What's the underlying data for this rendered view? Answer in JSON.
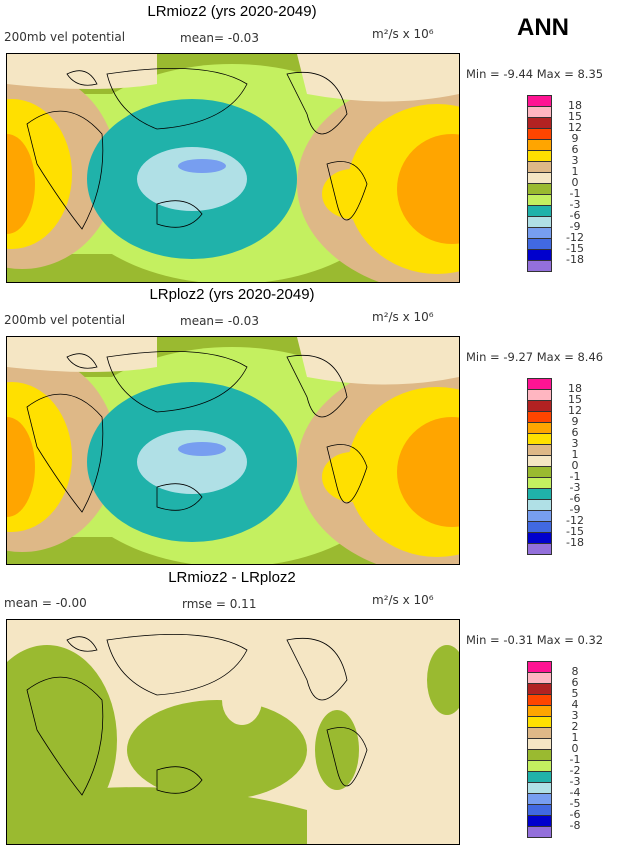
{
  "figure_label": "ANN",
  "legend_colors": [
    "#ff1493",
    "#ffb6c1",
    "#b22222",
    "#ff4500",
    "#ffa500",
    "#ffe000",
    "#deb887",
    "#f5e6c4",
    "#9aba30",
    "#c4f060",
    "#20b2aa",
    "#b0e0e6",
    "#779ef0",
    "#4169e1",
    "#0000cd",
    "#9370db"
  ],
  "panels": [
    {
      "title": "LRmioz2 (yrs 2020-2049)",
      "left_label": "200mb vel potential",
      "mean_label": "mean=  -0.03",
      "units": "m²/s x 10⁶",
      "minmax": "Min =  -9.44 Max =   8.35",
      "levels": [
        "18",
        "15",
        "12",
        "9",
        "6",
        "3",
        "1",
        "0",
        "-1",
        "-3",
        "-6",
        "-9",
        "-12",
        "-15",
        "-18"
      ]
    },
    {
      "title": "LRploz2 (yrs 2020-2049)",
      "left_label": "200mb vel potential",
      "mean_label": "mean=  -0.03",
      "units": "m²/s x 10⁶",
      "minmax": "Min =  -9.27 Max =   8.46",
      "levels": [
        "18",
        "15",
        "12",
        "9",
        "6",
        "3",
        "1",
        "0",
        "-1",
        "-3",
        "-6",
        "-9",
        "-12",
        "-15",
        "-18"
      ]
    },
    {
      "title": "LRmioz2 - LRploz2",
      "left_label": "mean =  -0.00",
      "mean_label": "rmse =   0.11",
      "units": "m²/s x 10⁶",
      "minmax": "Min =  -0.31 Max =   0.32",
      "levels": [
        "8",
        "6",
        "5",
        "4",
        "3",
        "2",
        "1",
        "0",
        "-1",
        "-2",
        "-3",
        "-4",
        "-5",
        "-6",
        "-8"
      ]
    }
  ]
}
